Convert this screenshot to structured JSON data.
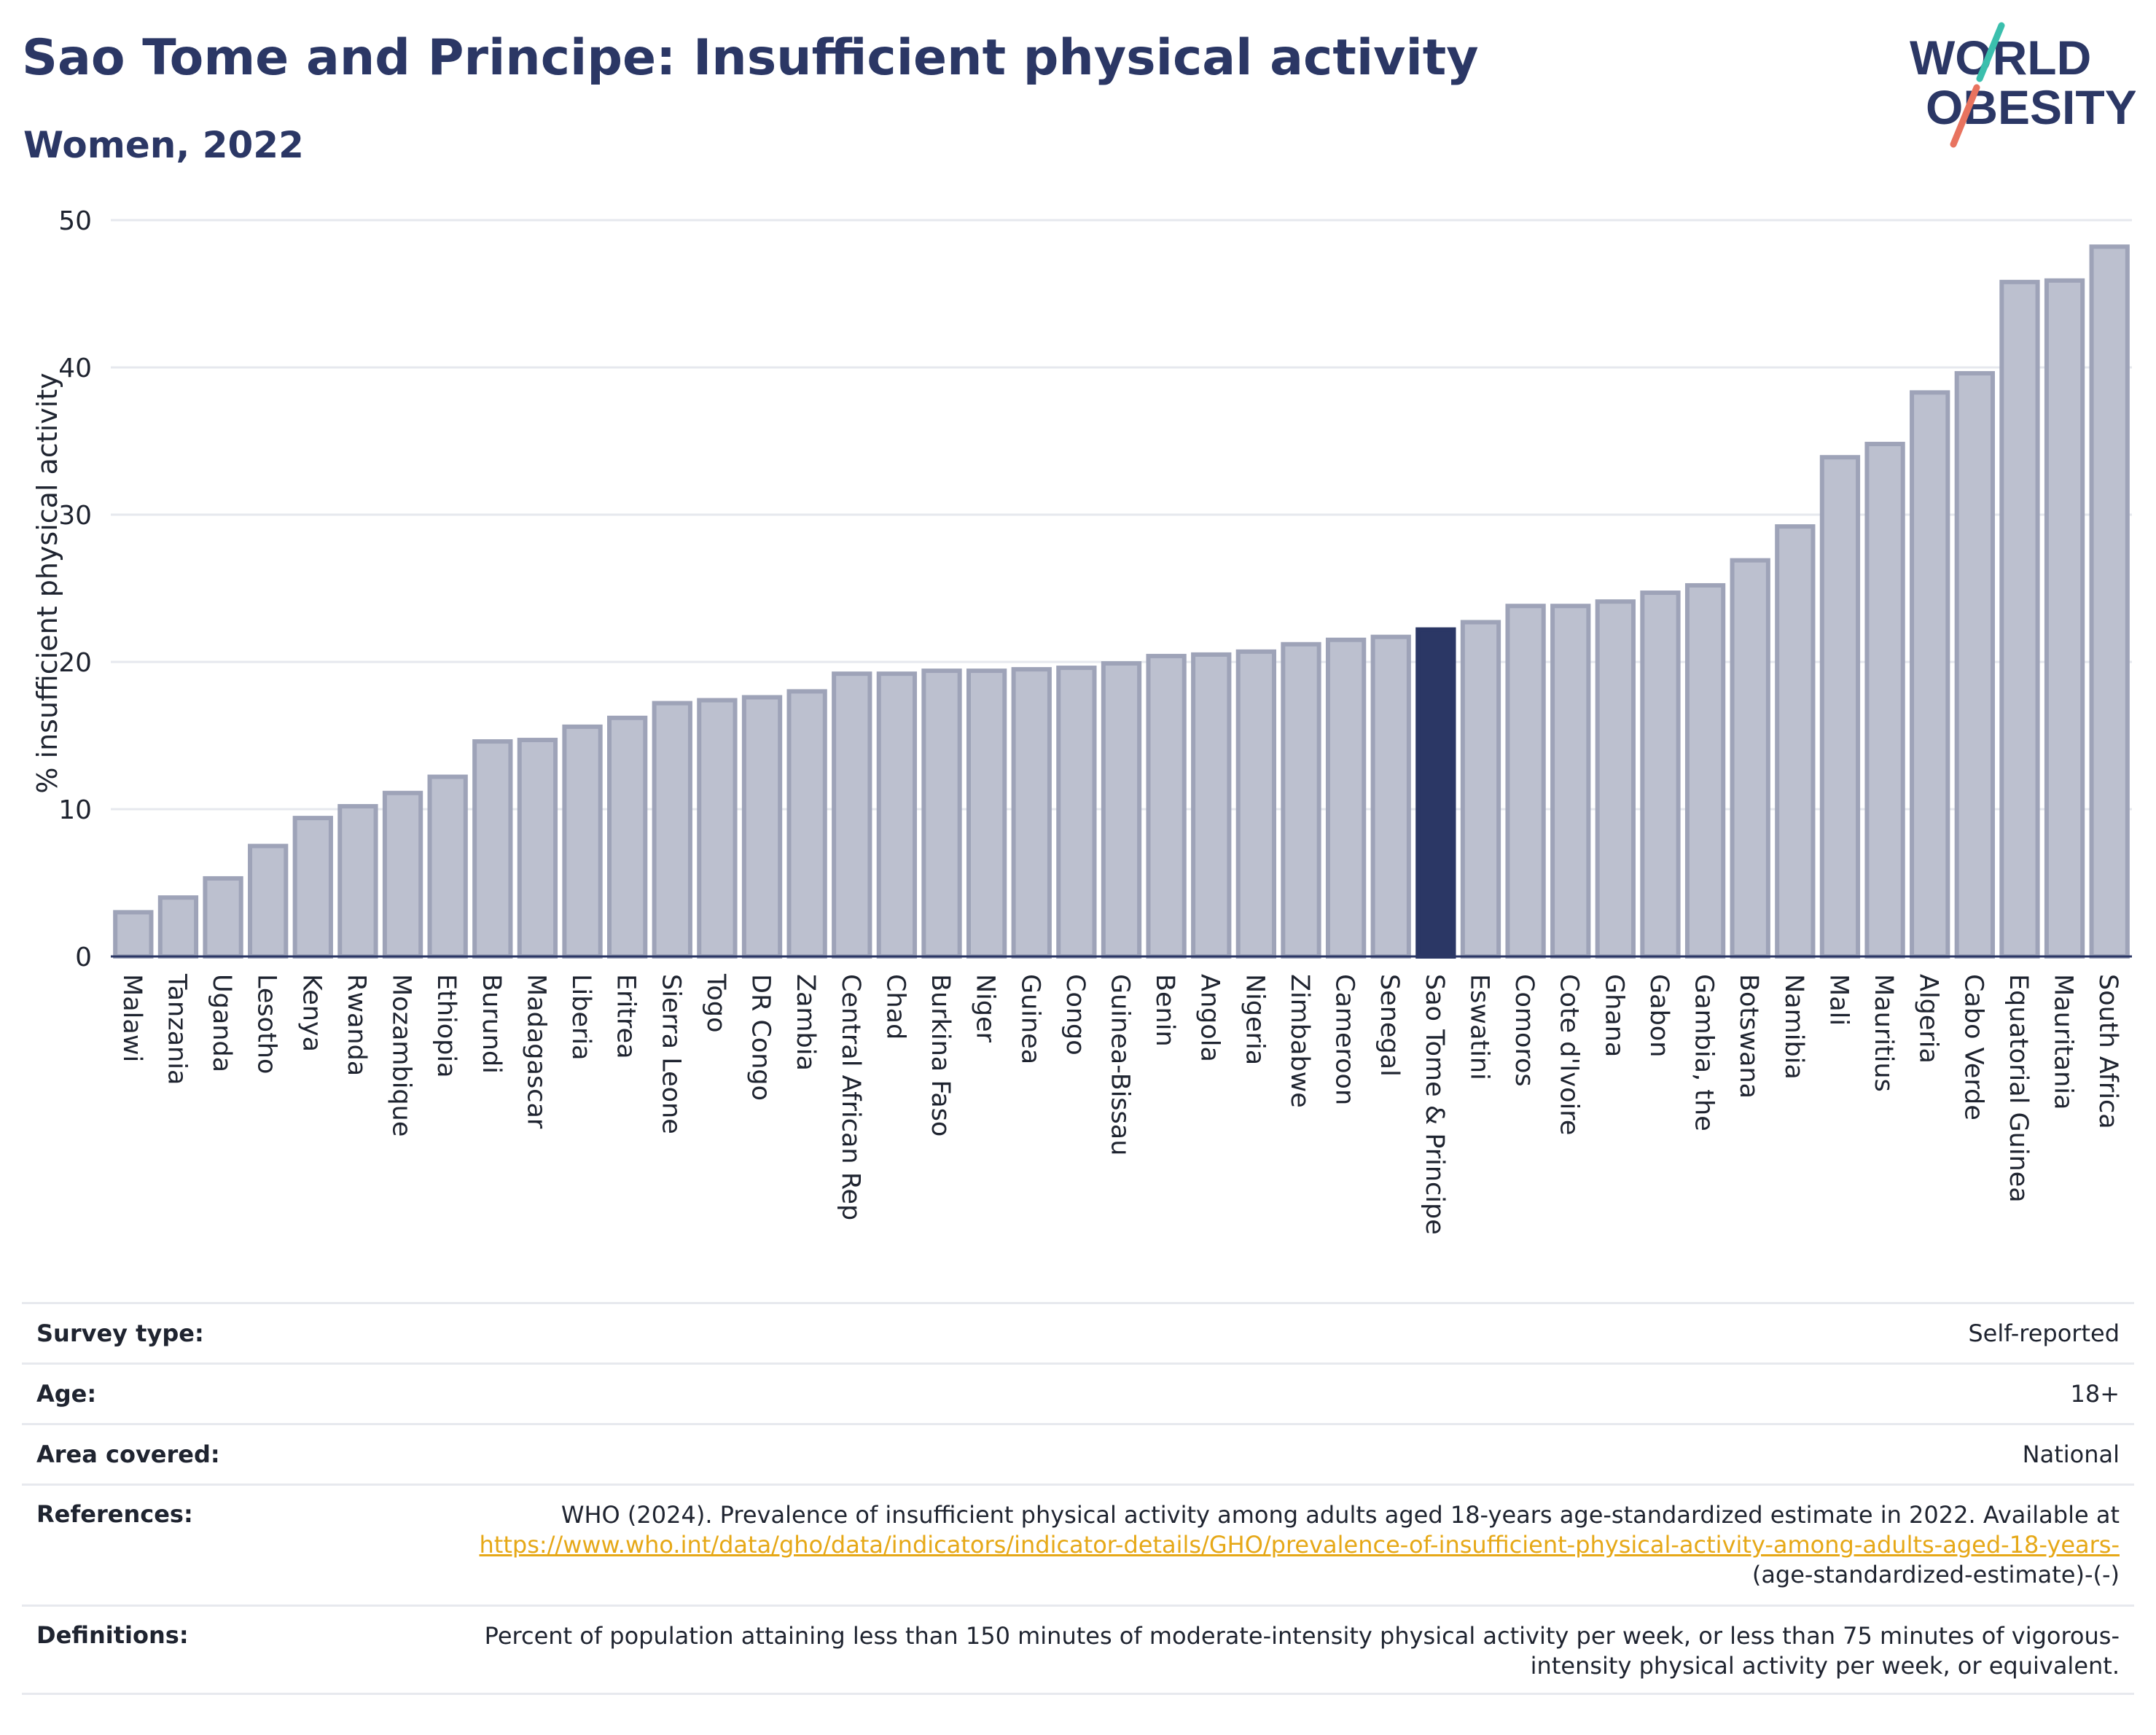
{
  "header": {
    "title": "Sao Tome and Principe: Insufficient physical activity",
    "subtitle": "Women, 2022"
  },
  "logo": {
    "line1": "WORLD",
    "line2": "OBESITY"
  },
  "colors": {
    "bar": "#bcc0cf",
    "bar_border": "#9ea3b8",
    "highlight": "#2b3765",
    "title": "#2b3765",
    "link": "#e6a817"
  },
  "chart_data": {
    "type": "bar",
    "ylabel": "% insufficient physical activity",
    "ylim": [
      0,
      50
    ],
    "yticks": [
      0,
      10,
      20,
      30,
      40,
      50
    ],
    "grid": true,
    "highlight": "Sao Tome & Principe",
    "categories": [
      "Malawi",
      "Tanzania",
      "Uganda",
      "Lesotho",
      "Kenya",
      "Rwanda",
      "Mozambique",
      "Ethiopia",
      "Burundi",
      "Madagascar",
      "Liberia",
      "Eritrea",
      "Sierra Leone",
      "Togo",
      "DR Congo",
      "Zambia",
      "Central African Rep",
      "Chad",
      "Burkina Faso",
      "Niger",
      "Guinea",
      "Congo",
      "Guinea-Bissau",
      "Benin",
      "Angola",
      "Nigeria",
      "Zimbabwe",
      "Cameroon",
      "Senegal",
      "Sao Tome & Principe",
      "Eswatini",
      "Comoros",
      "Cote d'Ivoire",
      "Ghana",
      "Gabon",
      "Gambia, the",
      "Botswana",
      "Namibia",
      "Mali",
      "Mauritius",
      "Algeria",
      "Cabo Verde",
      "Equatorial Guinea",
      "Mauritania",
      "South Africa"
    ],
    "values": [
      3.0,
      4.0,
      5.3,
      7.5,
      9.4,
      10.2,
      11.1,
      12.2,
      14.6,
      14.7,
      15.6,
      16.2,
      17.2,
      17.4,
      17.6,
      18.0,
      19.2,
      19.2,
      19.4,
      19.4,
      19.5,
      19.6,
      19.9,
      20.4,
      20.5,
      20.7,
      21.2,
      21.5,
      21.7,
      22.2,
      22.7,
      23.8,
      23.8,
      24.1,
      24.7,
      25.2,
      26.9,
      29.2,
      33.9,
      34.8,
      38.3,
      39.6,
      45.8,
      45.9,
      48.2
    ]
  },
  "info": {
    "survey_type": {
      "label": "Survey type:",
      "value": "Self-reported"
    },
    "age": {
      "label": "Age:",
      "value": "18+"
    },
    "area": {
      "label": "Area covered:",
      "value": "National"
    },
    "references": {
      "label": "References:",
      "text": "WHO (2024). Prevalence of insufficient physical activity among adults aged 18-years age-standardized estimate in 2022. Available at",
      "link": "https://www.who.int/data/gho/data/indicators/indicator-details/GHO/prevalence-of-insufficient-physical-activity-among-adults-aged-18-years-",
      "suffix": "(age-standardized-estimate)-(-)"
    },
    "definitions": {
      "label": "Definitions:",
      "text": "Percent of population attaining less than 150 minutes of moderate-intensity physical activity per week, or less than 75 minutes of vigorous-intensity physical activity per week, or equivalent."
    }
  }
}
